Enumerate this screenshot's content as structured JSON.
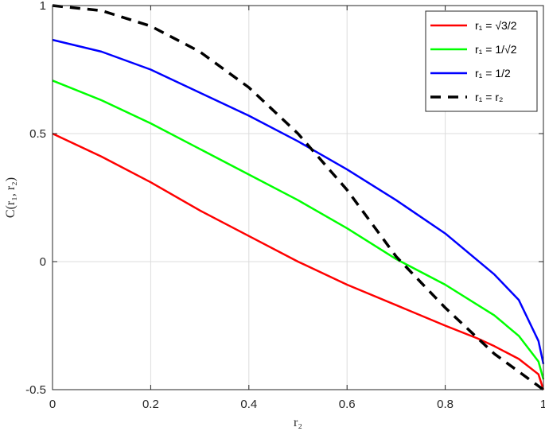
{
  "chart_data": {
    "type": "line",
    "xlabel": "r₂",
    "ylabel": "C(r₁, r₂)",
    "xlim": [
      0,
      1
    ],
    "ylim": [
      -0.5,
      1
    ],
    "xticks": [
      0,
      0.2,
      0.4,
      0.6,
      0.8,
      1
    ],
    "xtick_labels": [
      "0",
      "0.2",
      "0.4",
      "0.6",
      "0.8",
      "1"
    ],
    "yticks": [
      -0.5,
      0,
      0.5,
      1
    ],
    "ytick_labels": [
      "-0.5",
      "0",
      "0.5",
      "1"
    ],
    "grid": true,
    "legend_position": "top-right",
    "series": [
      {
        "name": "r₁ = √3/2",
        "color": "#ff0000",
        "style": "solid",
        "x": [
          0,
          0.1,
          0.2,
          0.3,
          0.4,
          0.5,
          0.6,
          0.7,
          0.8,
          0.866,
          0.9,
          0.95,
          0.99,
          1
        ],
        "y": [
          0.5,
          0.41,
          0.31,
          0.2,
          0.1,
          0.0,
          -0.09,
          -0.17,
          -0.25,
          -0.3,
          -0.33,
          -0.38,
          -0.44,
          -0.5
        ]
      },
      {
        "name": "r₁ = 1/√2",
        "color": "#00ff00",
        "style": "solid",
        "x": [
          0,
          0.1,
          0.2,
          0.3,
          0.4,
          0.5,
          0.6,
          0.7,
          0.8,
          0.9,
          0.95,
          0.99,
          1
        ],
        "y": [
          0.707,
          0.63,
          0.54,
          0.44,
          0.34,
          0.24,
          0.13,
          0.01,
          -0.09,
          -0.21,
          -0.29,
          -0.39,
          -0.46
        ]
      },
      {
        "name": "r₁ = 1/2",
        "color": "#0000ff",
        "style": "solid",
        "x": [
          0,
          0.1,
          0.2,
          0.3,
          0.4,
          0.5,
          0.6,
          0.7,
          0.8,
          0.9,
          0.95,
          0.99,
          1
        ],
        "y": [
          0.866,
          0.82,
          0.75,
          0.66,
          0.57,
          0.47,
          0.36,
          0.24,
          0.11,
          -0.05,
          -0.15,
          -0.31,
          -0.4
        ]
      },
      {
        "name": "r₁ = r₂",
        "color": "#000000",
        "style": "dashed",
        "x": [
          0,
          0.1,
          0.2,
          0.3,
          0.4,
          0.5,
          0.6,
          0.7,
          0.8,
          0.9,
          1
        ],
        "y": [
          1.0,
          0.98,
          0.92,
          0.82,
          0.68,
          0.5,
          0.28,
          0.02,
          -0.18,
          -0.36,
          -0.5
        ]
      }
    ]
  }
}
